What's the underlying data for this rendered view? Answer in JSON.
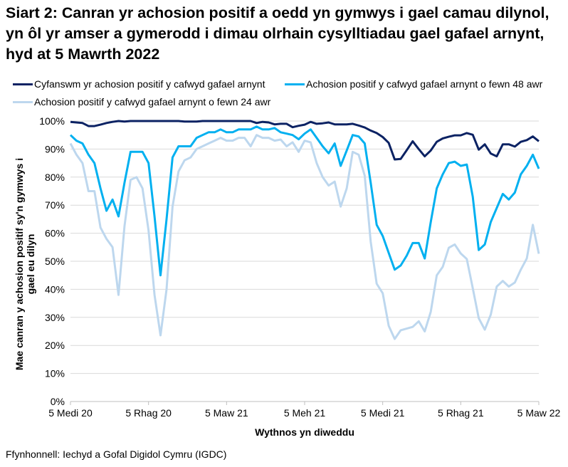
{
  "title": "Siart 2: Canran yr achosion positif a oedd yn gymwys i gael camau dilynol, yn ôl yr amser a gymerodd i dimau olrhain cysylltiadau gael gafael arnynt, hyd at 5 Mawrth 2022",
  "source": "Ffynhonnell: Iechyd a Gofal Digidol Cymru (IGDC)",
  "chart_data": {
    "type": "line",
    "title": "Siart 2: Canran yr achosion positif a oedd yn gymwys i gael camau dilynol, yn ôl yr amser a gymerodd i dimau olrhain cysylltiadau gael gafael arnynt, hyd at 5 Mawrth 2022",
    "xlabel": "Wythnos yn diweddu",
    "ylabel": "Mae canran y achosion positif sy'n gymwys i gael eu dilyn",
    "x_start": "2020-09-05",
    "x_end": "2022-03-05",
    "x_frequency": "weekly",
    "x_tick_labels": [
      "5 Medi 20",
      "5 Rhag 20",
      "5 Maw 21",
      "5 Meh 21",
      "5 Medi 21",
      "5 Rhag 21",
      "5 Maw 22"
    ],
    "y_tick_labels": [
      "0%",
      "10%",
      "20%",
      "30%",
      "40%",
      "50%",
      "60%",
      "70%",
      "80%",
      "90%",
      "100%"
    ],
    "ylim": [
      0,
      100
    ],
    "grid": "horizontal",
    "legend_placement": "top",
    "series": [
      {
        "name": "Cyfanswm yr achosion positif y cafwyd gafael arnynt",
        "color": "#0b2263",
        "values": [
          99.7,
          99.5,
          99.3,
          98.2,
          98.2,
          98.7,
          99.3,
          99.7,
          100,
          99.8,
          100,
          100,
          100,
          100,
          100,
          100,
          100,
          100,
          100,
          99.8,
          99.8,
          99.8,
          100,
          100,
          100,
          100,
          100,
          100,
          100,
          100,
          100,
          99.3,
          99.7,
          99.5,
          98.8,
          99,
          99,
          97.8,
          98.3,
          98.7,
          99.7,
          99,
          99.2,
          99.5,
          98.8,
          98.8,
          98.8,
          99,
          98.4,
          97.7,
          96.6,
          95.7,
          94.3,
          92.2,
          86.3,
          86.5,
          89.6,
          92.8,
          90,
          87.4,
          89.5,
          92.6,
          93.8,
          94.4,
          94.9,
          94.9,
          95.7,
          95.1,
          89.8,
          91.7,
          88.4,
          87.4,
          91.7,
          91.7,
          90.9,
          92.6,
          93.2,
          94.5,
          92.8
        ]
      },
      {
        "name": "Achosion positif y cafwyd gafael arnynt o fewn 48 awr",
        "color": "#00b0f0",
        "values": [
          95,
          93,
          92,
          88,
          85,
          76,
          68,
          72,
          66,
          78,
          89,
          89,
          89,
          85,
          66,
          45,
          65,
          87,
          91,
          91,
          91,
          94,
          95,
          96,
          96,
          97,
          96,
          96,
          97,
          97,
          97,
          98,
          97,
          97,
          97.5,
          96,
          95.5,
          95,
          93.5,
          95.5,
          97,
          94,
          91,
          88.5,
          92,
          84,
          89.5,
          95,
          94.5,
          92,
          78,
          63,
          59,
          53,
          47,
          48.5,
          52,
          56.5,
          56.5,
          51,
          64,
          76,
          81,
          85,
          85.5,
          84,
          84.5,
          73,
          54,
          56,
          64,
          69,
          74,
          72,
          74.5,
          81,
          84,
          88,
          83
        ]
      },
      {
        "name": "Achosion positif y cafwyd gafael arnynt o fewn 24 awr",
        "color": "#bdd7ee",
        "values": [
          92,
          88,
          85,
          75,
          75,
          62,
          58,
          55,
          38,
          62.5,
          79,
          80,
          76,
          61,
          38,
          23.6,
          40,
          69.5,
          82,
          86,
          87,
          90,
          91,
          92,
          93,
          94,
          93,
          93,
          94,
          94,
          91,
          95,
          94,
          94,
          93,
          93.4,
          91,
          92.4,
          89,
          93,
          92.4,
          85,
          80,
          77,
          78.4,
          69.5,
          76,
          89,
          88,
          80.5,
          57,
          42,
          38.6,
          27,
          22.3,
          25.4,
          26,
          26.6,
          28.6,
          25,
          32,
          45,
          48,
          54.8,
          56,
          52.8,
          50.8,
          40.4,
          29.7,
          25.6,
          31,
          41,
          43,
          41,
          42.4,
          47,
          51,
          63,
          52.7
        ]
      }
    ]
  }
}
